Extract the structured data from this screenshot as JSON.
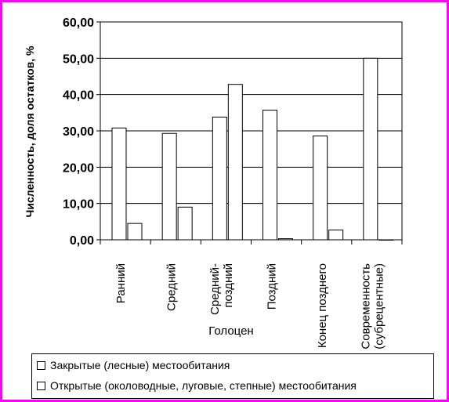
{
  "frame_color": "#ff00ff",
  "chart_data": {
    "type": "bar",
    "ylabel": "Численность, доля остатков, %",
    "xlabel": "Голоцен",
    "ylim": [
      0,
      60
    ],
    "yticks": [
      "0,00",
      "10,00",
      "20,00",
      "30,00",
      "40,00",
      "50,00",
      "60,00"
    ],
    "grid": true,
    "legend_position": "bottom",
    "categories": [
      [
        "Ранний"
      ],
      [
        "Средний"
      ],
      [
        "Средний-",
        "поздний"
      ],
      [
        "Поздний"
      ],
      [
        "Конец позднего"
      ],
      [
        "Современность",
        "(субрецентные)"
      ]
    ],
    "series": [
      {
        "name": "Закрытые (лесные) местообитания",
        "values": [
          30.8,
          29.3,
          33.8,
          35.7,
          28.6,
          50.0
        ],
        "fill": "#ffffff"
      },
      {
        "name": "Открытые (околоводные, луговые, степные) местообитания",
        "values": [
          4.5,
          9.0,
          42.8,
          0.3,
          2.7,
          0.0
        ],
        "fill": "#ffffff"
      }
    ]
  }
}
